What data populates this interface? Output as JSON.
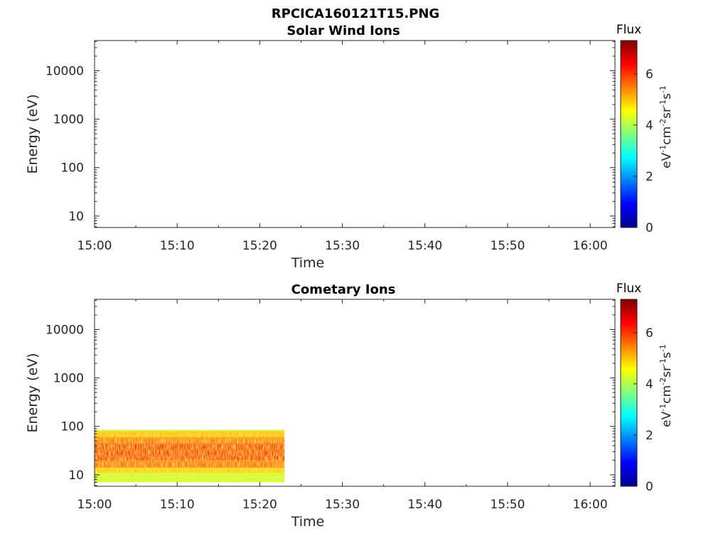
{
  "figure_title": "RPCICA160121T15.PNG",
  "chart_data": [
    {
      "type": "heatmap",
      "title": "Solar Wind Ions",
      "xlabel": "Time",
      "ylabel": "Energy (eV)",
      "x_ticks": [
        "15:00",
        "15:10",
        "15:20",
        "15:30",
        "15:40",
        "15:50",
        "16:00"
      ],
      "x_tick_minutes": [
        0,
        10,
        20,
        30,
        40,
        50,
        60
      ],
      "xlim_minutes": [
        0,
        63
      ],
      "y_scale": "log",
      "y_ticks": [
        "10",
        "100",
        "1000",
        "10000"
      ],
      "y_tick_values": [
        10,
        100,
        1000,
        10000
      ],
      "ylim": [
        5.8,
        42000
      ],
      "colorbar": {
        "label": "Flux",
        "units": "eV-1cm-2sr-1s-1",
        "ticks": [
          "0",
          "2",
          "4",
          "6"
        ],
        "tick_values": [
          0,
          2,
          4,
          6
        ],
        "range": [
          0,
          7.3
        ],
        "colormap": "jet"
      },
      "data": []
    },
    {
      "type": "heatmap",
      "title": "Cometary Ions",
      "xlabel": "Time",
      "ylabel": "Energy (eV)",
      "x_ticks": [
        "15:00",
        "15:10",
        "15:20",
        "15:30",
        "15:40",
        "15:50",
        "16:00"
      ],
      "x_tick_minutes": [
        0,
        10,
        20,
        30,
        40,
        50,
        60
      ],
      "xlim_minutes": [
        0,
        63
      ],
      "y_scale": "log",
      "y_ticks": [
        "10",
        "100",
        "1000",
        "10000"
      ],
      "y_tick_values": [
        10,
        100,
        1000,
        10000
      ],
      "ylim": [
        5.8,
        42000
      ],
      "colorbar": {
        "label": "Flux",
        "units": "eV-1cm-2sr-1s-1",
        "ticks": [
          "0",
          "2",
          "4",
          "6"
        ],
        "tick_values": [
          0,
          2,
          4,
          6
        ],
        "range": [
          0,
          7.3
        ],
        "colormap": "jet"
      },
      "data": [
        {
          "time_range_minutes": [
            0,
            23
          ],
          "energy_range_eV": [
            80,
            85
          ],
          "flux": 4.2
        },
        {
          "time_range_minutes": [
            0,
            23
          ],
          "energy_range_eV": [
            60,
            80
          ],
          "flux": 5.0
        },
        {
          "time_range_minutes": [
            0,
            23
          ],
          "energy_range_eV": [
            45,
            60
          ],
          "flux": 5.5
        },
        {
          "time_range_minutes": [
            0,
            23
          ],
          "energy_range_eV": [
            20,
            45
          ],
          "flux": 6.0
        },
        {
          "time_range_minutes": [
            0,
            23
          ],
          "energy_range_eV": [
            14,
            20
          ],
          "flux": 5.6
        },
        {
          "time_range_minutes": [
            0,
            23
          ],
          "energy_range_eV": [
            11,
            14
          ],
          "flux": 4.9
        },
        {
          "time_range_minutes": [
            0,
            23
          ],
          "energy_range_eV": [
            7,
            11
          ],
          "flux": 4.2
        }
      ]
    }
  ]
}
